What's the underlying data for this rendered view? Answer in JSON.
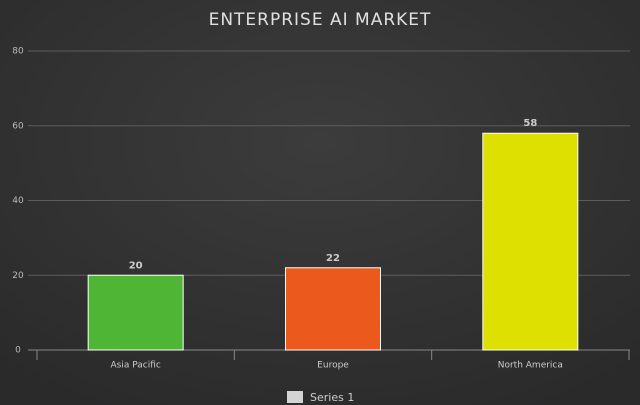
{
  "chart_data": {
    "type": "bar",
    "title": "ENTERPRISE AI MARKET",
    "categories": [
      "Asia Pacific",
      "Europe",
      "North America"
    ],
    "series": [
      {
        "name": "Series 1",
        "color": "#d4d4d4",
        "values": [
          20,
          22,
          58
        ],
        "colors": [
          "#4fb534",
          "#eb5a1c",
          "#dde000"
        ]
      }
    ],
    "ylim": [
      0,
      80
    ],
    "yticks": [
      0,
      20,
      40,
      60,
      80
    ],
    "grid": true,
    "legend": "bottom"
  }
}
